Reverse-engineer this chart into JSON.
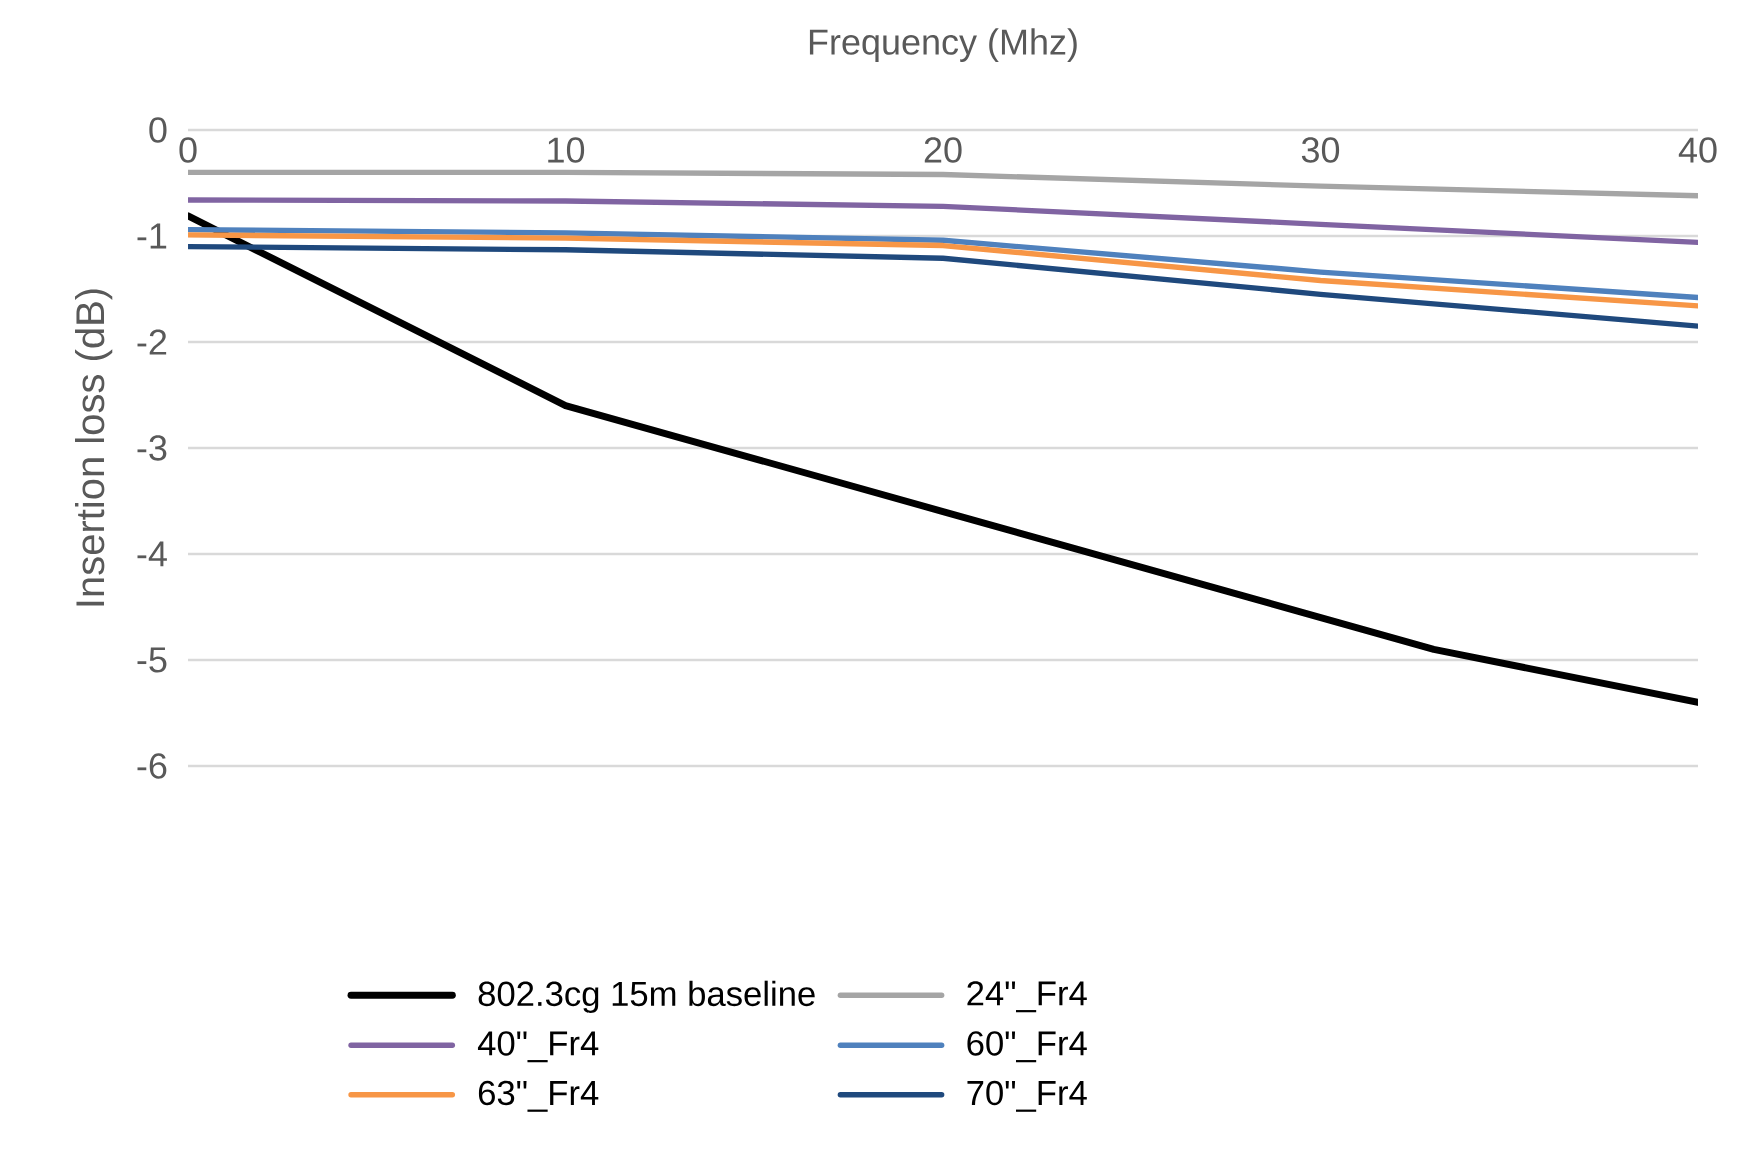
{
  "chart_data": {
    "type": "line",
    "xlabel": "Frequency (Mhz)",
    "ylabel": "Insertion loss (dB)",
    "xlim": [
      0,
      40
    ],
    "xticks": [
      0,
      10,
      20,
      30,
      40
    ],
    "ylim": [
      -6,
      0
    ],
    "yticks": [
      -6,
      -5,
      -4,
      -3,
      -2,
      -1,
      0
    ],
    "grid": "y",
    "legend": "bottom",
    "marker": "none",
    "line_style": "solid",
    "series": [
      {
        "name": "802.3cg 15m baseline",
        "color": "#000000",
        "x": [
          0,
          10,
          20,
          33,
          40
        ],
        "values": [
          -0.81,
          -2.6,
          -3.6,
          -4.9,
          -5.4
        ]
      },
      {
        "name": "24\"_Fr4",
        "color": "#a5a5a5",
        "x": [
          0,
          10,
          20,
          30,
          40
        ],
        "values": [
          -0.4,
          -0.4,
          -0.42,
          -0.53,
          -0.62
        ]
      },
      {
        "name": "40\"_Fr4",
        "color": "#8064a2",
        "x": [
          0,
          10,
          20,
          30,
          40
        ],
        "values": [
          -0.66,
          -0.67,
          -0.72,
          -0.89,
          -1.06
        ]
      },
      {
        "name": "60\"_Fr4",
        "color": "#4f81bd",
        "x": [
          0,
          10,
          20,
          30,
          40
        ],
        "values": [
          -0.94,
          -0.97,
          -1.04,
          -1.34,
          -1.58
        ]
      },
      {
        "name": "63\"_Fr4",
        "color": "#f79646",
        "x": [
          0,
          10,
          20,
          30,
          40
        ],
        "values": [
          -0.99,
          -1.02,
          -1.09,
          -1.42,
          -1.66
        ]
      },
      {
        "name": "70\"_Fr4",
        "color": "#1f497d",
        "x": [
          0,
          10,
          20,
          30,
          40
        ],
        "values": [
          -1.1,
          -1.13,
          -1.21,
          -1.55,
          -1.85
        ]
      }
    ]
  }
}
